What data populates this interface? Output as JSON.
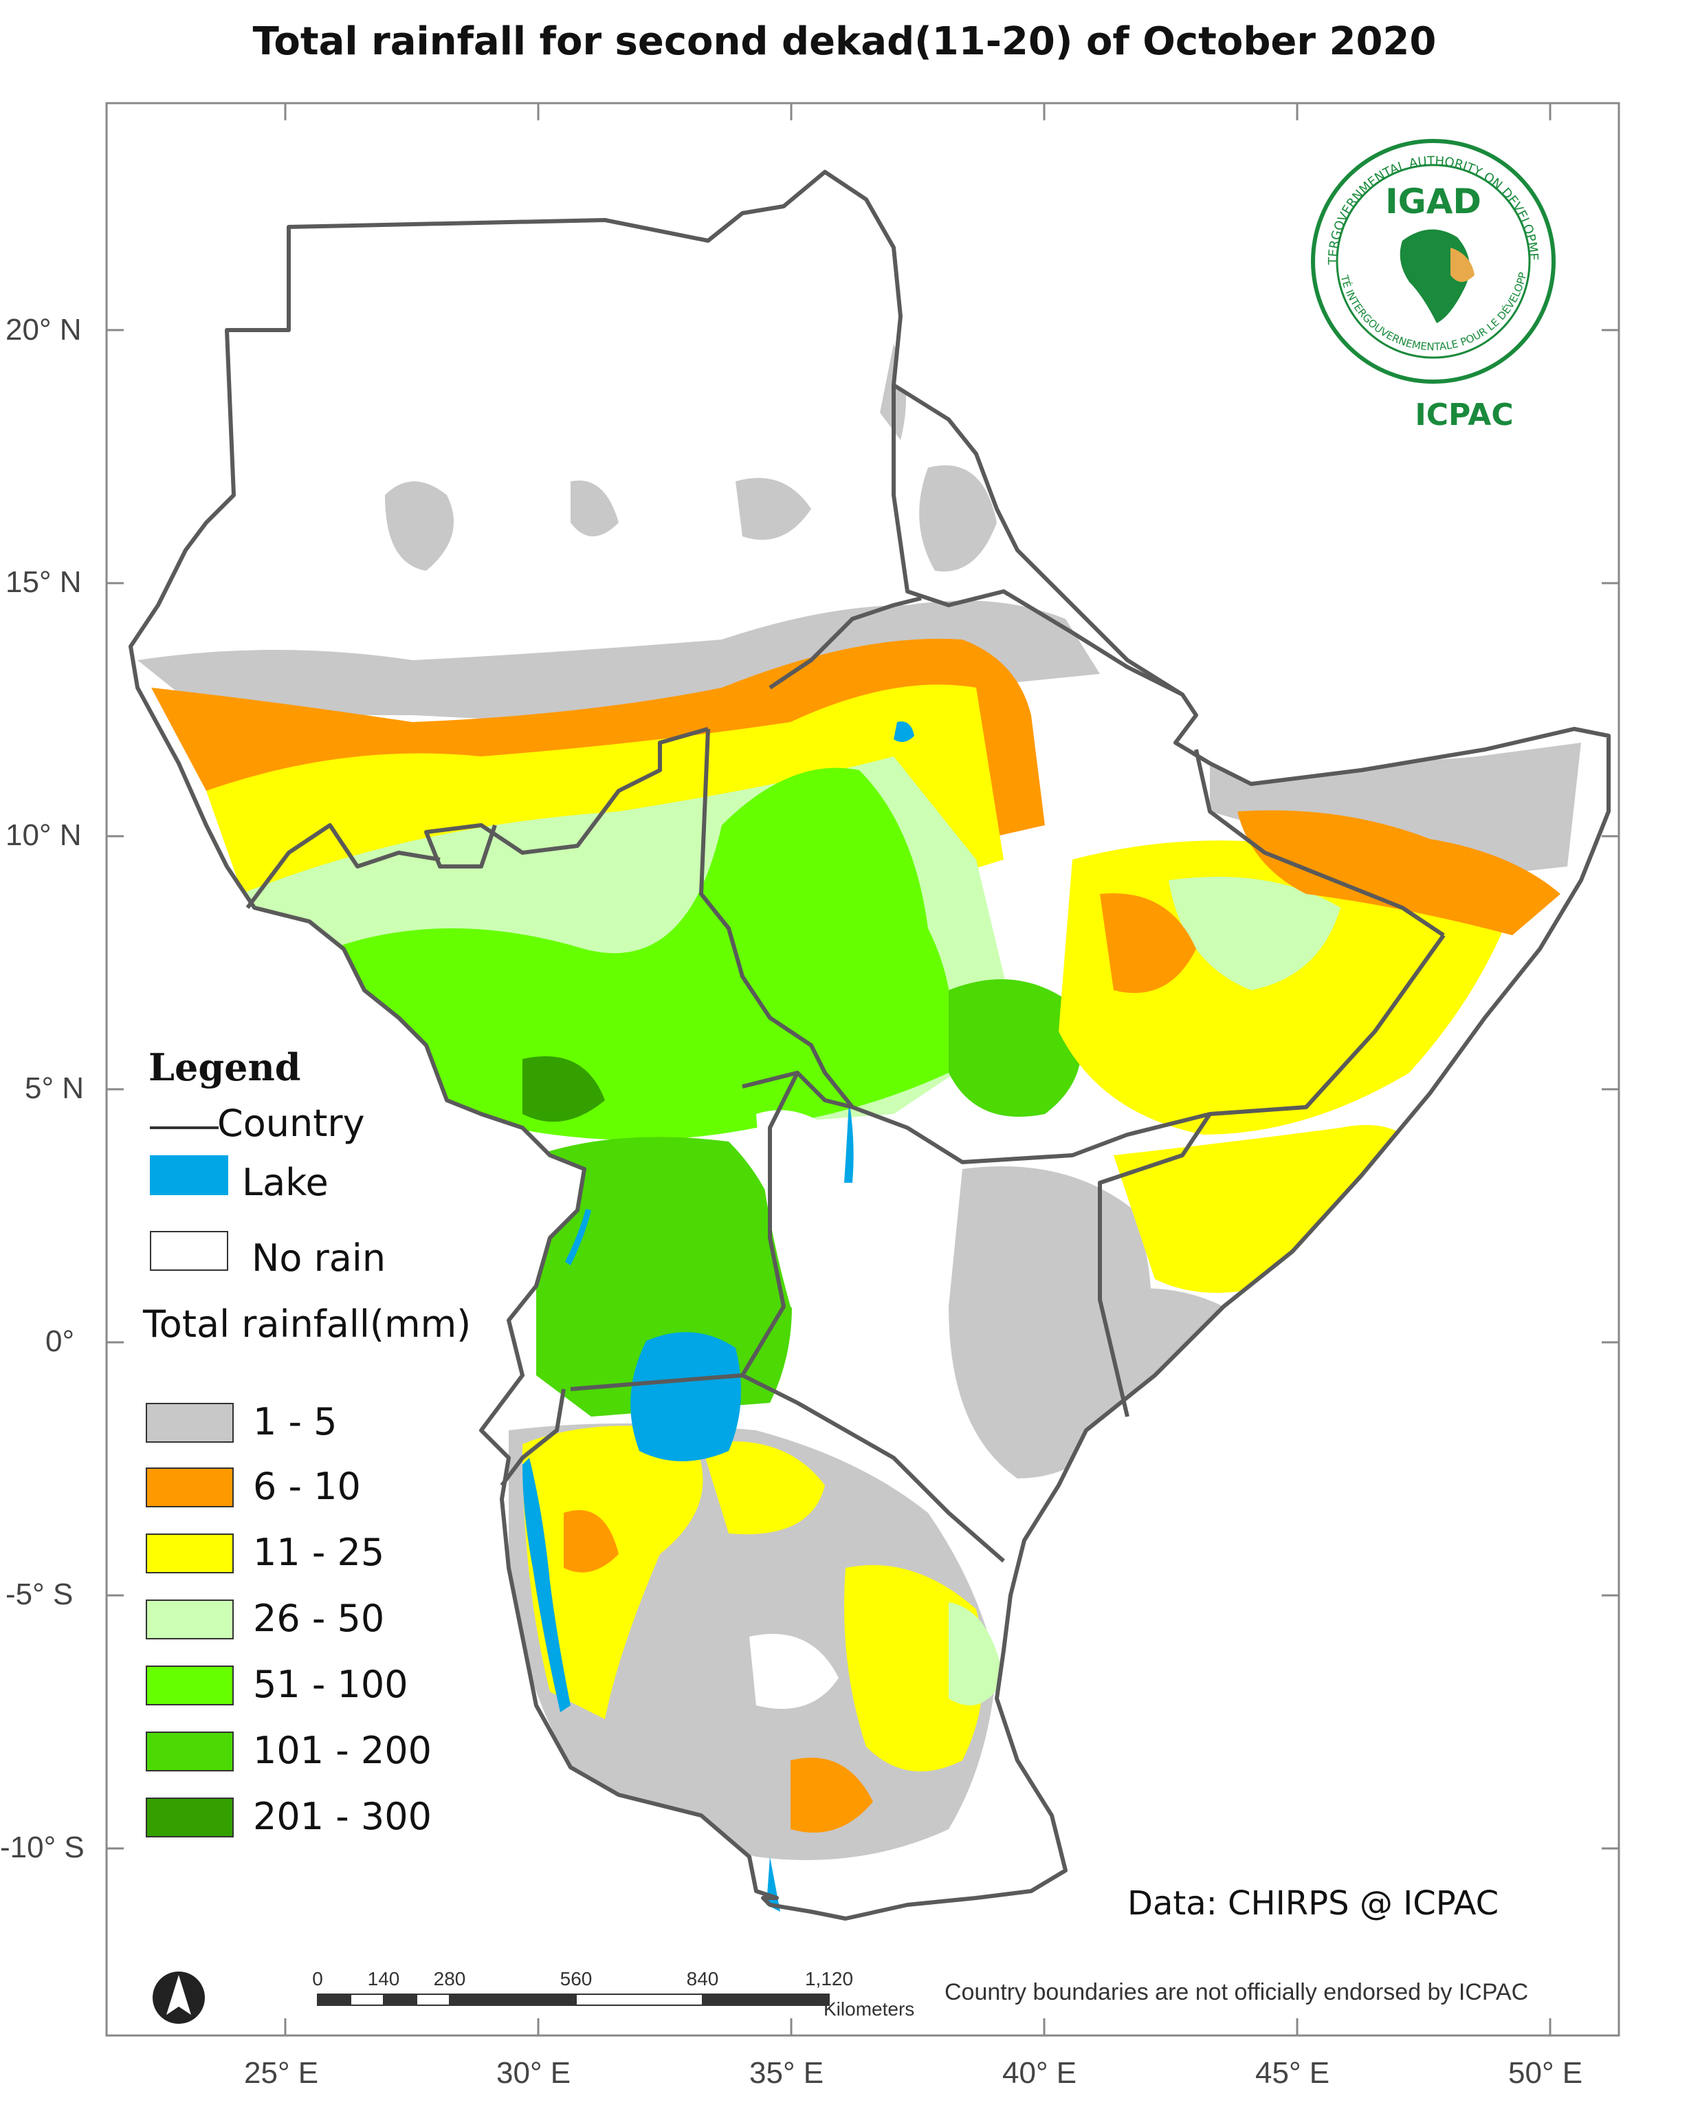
{
  "title": "Total rainfall for  second dekad(11-20)  of October 2020",
  "axes": {
    "lon_labels": [
      "25° E",
      "30° E",
      "35° E",
      "40° E",
      "45° E",
      "50° E"
    ],
    "lat_labels": [
      "20° N",
      "15° N",
      "10° N",
      "5° N",
      "0°",
      "-5° S",
      "-10° S"
    ]
  },
  "legend": {
    "heading": "Legend",
    "country_label": "Country",
    "lake_label": "Lake",
    "no_rain_label": "No rain",
    "rainfall_heading": "Total rainfall(mm)",
    "classes": [
      {
        "label": "1 - 5",
        "color": "#c8c8c8"
      },
      {
        "label": "6 - 10",
        "color": "#ff9900"
      },
      {
        "label": "11 - 25",
        "color": "#ffff00"
      },
      {
        "label": "26 - 50",
        "color": "#ccffb3"
      },
      {
        "label": "51 - 100",
        "color": "#66ff00"
      },
      {
        "label": "101 - 200",
        "color": "#4cd904"
      },
      {
        "label": "201 - 300",
        "color": "#33a000"
      }
    ],
    "lake_color": "#00a6e6",
    "border_color": "#5a5a5a"
  },
  "logo": {
    "name": "IGAD",
    "ring_top": "INTERGOVERNMENTAL AUTHORITY ON DEVELOPMENT",
    "ring_bottom": "AUTORITÉ INTERGOUVERNEMENTALE POUR LE DÉVELOPPEMENT",
    "org": "ICPAC",
    "color": "#1a8a3c"
  },
  "credit": "Data: CHIRPS @ ICPAC",
  "scale_bar": {
    "ticks": [
      "0",
      "140",
      "280",
      "560",
      "840",
      "1,120"
    ],
    "unit": "Kilometers"
  },
  "disclaimer": "Country boundaries are not officially endorsed by ICPAC",
  "north_arrow_icon": "north-arrow-icon"
}
